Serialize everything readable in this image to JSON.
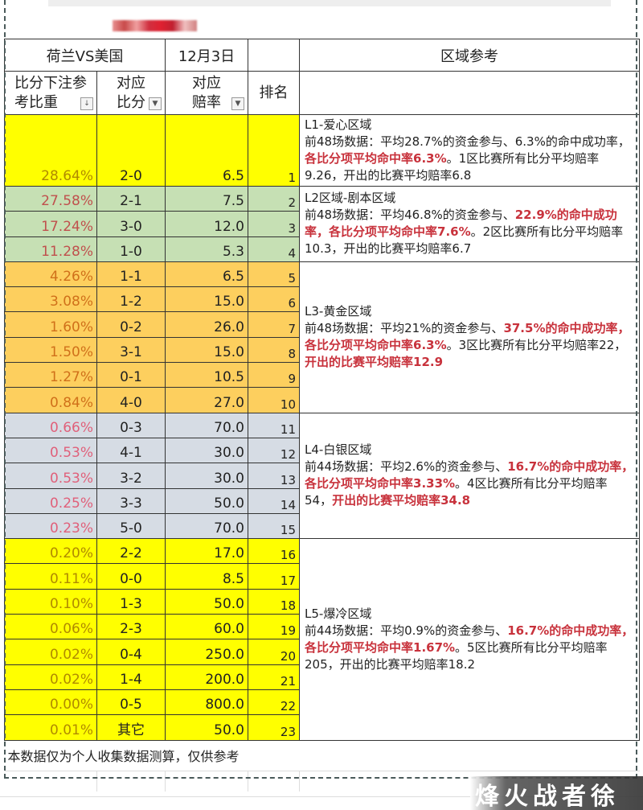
{
  "header": {
    "match": "荷兰VS美国",
    "date": "12月3日",
    "zone_title": "区域参考"
  },
  "columns": {
    "share": "比分下注参考比重",
    "score": "对应比分",
    "odds": "对应赔率",
    "rank": "排名"
  },
  "rows": [
    {
      "pct": "28.64%",
      "score": "2-0",
      "odds": "6.5",
      "rank": "1",
      "zone": "yellow"
    },
    {
      "pct": "27.58%",
      "score": "2-1",
      "odds": "7.5",
      "rank": "2",
      "zone": "green"
    },
    {
      "pct": "17.24%",
      "score": "3-0",
      "odds": "12.0",
      "rank": "3",
      "zone": "green"
    },
    {
      "pct": "11.28%",
      "score": "1-0",
      "odds": "5.3",
      "rank": "4",
      "zone": "green"
    },
    {
      "pct": "4.26%",
      "score": "1-1",
      "odds": "6.5",
      "rank": "5",
      "zone": "orange"
    },
    {
      "pct": "3.08%",
      "score": "1-2",
      "odds": "15.0",
      "rank": "6",
      "zone": "orange"
    },
    {
      "pct": "1.60%",
      "score": "0-2",
      "odds": "26.0",
      "rank": "7",
      "zone": "orange"
    },
    {
      "pct": "1.50%",
      "score": "3-1",
      "odds": "15.0",
      "rank": "8",
      "zone": "orange"
    },
    {
      "pct": "1.27%",
      "score": "0-1",
      "odds": "10.5",
      "rank": "9",
      "zone": "orange"
    },
    {
      "pct": "0.84%",
      "score": "4-0",
      "odds": "27.0",
      "rank": "10",
      "zone": "orange"
    },
    {
      "pct": "0.66%",
      "score": "0-3",
      "odds": "70.0",
      "rank": "11",
      "zone": "gray"
    },
    {
      "pct": "0.53%",
      "score": "4-1",
      "odds": "30.0",
      "rank": "12",
      "zone": "gray"
    },
    {
      "pct": "0.53%",
      "score": "3-2",
      "odds": "30.0",
      "rank": "13",
      "zone": "gray"
    },
    {
      "pct": "0.25%",
      "score": "3-3",
      "odds": "50.0",
      "rank": "14",
      "zone": "gray"
    },
    {
      "pct": "0.23%",
      "score": "5-0",
      "odds": "70.0",
      "rank": "15",
      "zone": "gray"
    },
    {
      "pct": "0.20%",
      "score": "2-2",
      "odds": "17.0",
      "rank": "16",
      "zone": "yellow"
    },
    {
      "pct": "0.11%",
      "score": "0-0",
      "odds": "8.5",
      "rank": "17",
      "zone": "yellow"
    },
    {
      "pct": "0.10%",
      "score": "1-3",
      "odds": "50.0",
      "rank": "18",
      "zone": "yellow"
    },
    {
      "pct": "0.06%",
      "score": "2-3",
      "odds": "60.0",
      "rank": "19",
      "zone": "yellow"
    },
    {
      "pct": "0.02%",
      "score": "0-4",
      "odds": "250.0",
      "rank": "20",
      "zone": "yellow"
    },
    {
      "pct": "0.02%",
      "score": "1-4",
      "odds": "200.0",
      "rank": "21",
      "zone": "yellow"
    },
    {
      "pct": "0.00%",
      "score": "0-5",
      "odds": "800.0",
      "rank": "22",
      "zone": "yellow"
    },
    {
      "pct": "0.01%",
      "score": "其它",
      "odds": "50.0",
      "rank": "23",
      "zone": "yellow"
    }
  ],
  "zones": [
    {
      "span": 1,
      "parts": [
        [
          "L1-爱心区域\n",
          0
        ],
        [
          "前48场数据：平均28.7%的资金参与、6.3%的命中成功率，",
          0
        ],
        [
          "各比分项平均命中率6.3%",
          1
        ],
        [
          "。1区比赛所有比分平均赔率9.26，开出的比赛平均赔率6.8",
          0
        ]
      ]
    },
    {
      "span": 3,
      "parts": [
        [
          "L2区域-剧本区域\n",
          0
        ],
        [
          "前48场数据：平均46.8%的资金参与、",
          0
        ],
        [
          "22.9%的命中成功率，各比分项平均命中率7.6%",
          1
        ],
        [
          "。2区比赛所有比分平均赔率10.3，开出的比赛平均赔率6.7",
          0
        ]
      ]
    },
    {
      "span": 6,
      "parts": [
        [
          "L3-黄金区域\n",
          0
        ],
        [
          "前48场数据：平均21%的资金参与、",
          0
        ],
        [
          "37.5%的命中成功率，各比分项平均命中率6.3%",
          1
        ],
        [
          "。3区比赛所有比分平均赔率22，",
          0
        ],
        [
          "开出的比赛平均赔率12.9",
          1
        ]
      ]
    },
    {
      "span": 5,
      "parts": [
        [
          "L4-白银区域\n",
          0
        ],
        [
          "前44场数据：平均2.6%的资金参与、",
          0
        ],
        [
          "16.7%的命中成功率，各比分项平均命中率3.33%",
          1
        ],
        [
          "。4区比赛所有比分平均赔率54，",
          0
        ],
        [
          "开出的比赛平均赔率34.8",
          1
        ]
      ]
    },
    {
      "span": 8,
      "parts": [
        [
          "L5-爆冷区域\n",
          0
        ],
        [
          "前44场数据：平均0.9%的资金参与、",
          0
        ],
        [
          "16.7%的命中成功率，各比分项平均命中率1.67%",
          1
        ],
        [
          "。5区比赛所有比分平均赔率205，开出的比赛平均赔率18.2",
          0
        ]
      ]
    }
  ],
  "footer": "本数据仅为个人收集数据测算，仅供参考",
  "watermark": "烽火战者徐",
  "colors": {
    "yellow": "#ffff00",
    "green": "#c6e0b4",
    "orange": "#fdcf5e",
    "gray": "#d6dce4",
    "highlight": "#c8323c"
  }
}
